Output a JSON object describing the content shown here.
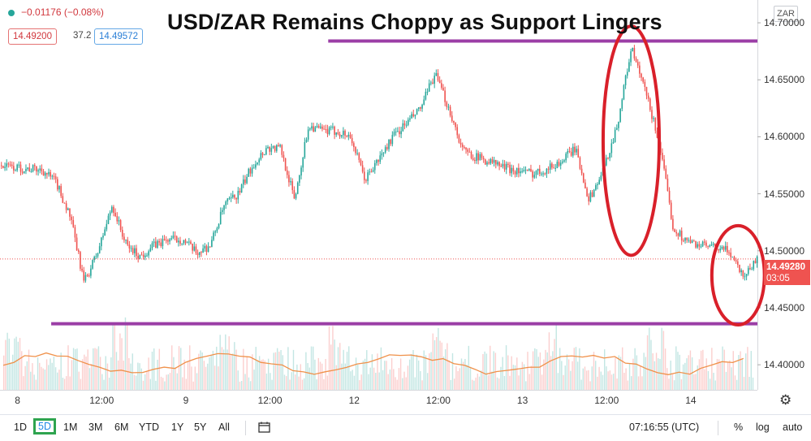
{
  "legend": {
    "change_text": "−0.01176 (−0.08%)",
    "bid": "14.49200",
    "spread": "37.2",
    "ask": "14.49572"
  },
  "title": "USD/ZAR Remains Choppy as Support Lingers",
  "currency_label": "ZAR",
  "price_tag": {
    "price": "14.49280",
    "countdown": "03:05"
  },
  "ranges": [
    "1D",
    "5D",
    "1M",
    "3M",
    "6M",
    "YTD",
    "1Y",
    "5Y",
    "All"
  ],
  "active_range": "5D",
  "clock": "07:16:55 (UTC)",
  "options": {
    "percent": "%",
    "log": "log",
    "auto": "auto"
  },
  "colors": {
    "up": "#26a69a",
    "down": "#ef5350",
    "volume_ma": "#f0914a",
    "support_resistance": "#9b3ea6",
    "annotation_circle": "#d9202a"
  },
  "chart_data": {
    "type": "line",
    "title": "USD/ZAR Remains Choppy as Support Lingers",
    "y_ticks": [
      "14.70000",
      "14.65000",
      "14.60000",
      "14.55000",
      "14.50000",
      "14.45000",
      "14.40000"
    ],
    "x_ticks": [
      "8",
      "12:00",
      "9",
      "12:00",
      "12",
      "12:00",
      "13",
      "12:00",
      "14"
    ],
    "ylim": [
      14.378,
      14.72
    ],
    "resistance": 14.684,
    "support": 14.436,
    "last_price": 14.4928,
    "series": [
      {
        "x": [
          0,
          2,
          4,
          6,
          8,
          10,
          12,
          14,
          16,
          18,
          20,
          22,
          24,
          26,
          28,
          30,
          32,
          34,
          36,
          38,
          40,
          42,
          44,
          46,
          48,
          50,
          52,
          54,
          56,
          58,
          60,
          62,
          64,
          66,
          68,
          70,
          72,
          74,
          76,
          78,
          80,
          82,
          84,
          86,
          88,
          90,
          92,
          94,
          96,
          98,
          100,
          102,
          104,
          106,
          108
        ],
        "values": [
          14.575,
          14.573,
          14.572,
          14.571,
          14.56,
          14.53,
          14.472,
          14.5,
          14.54,
          14.505,
          14.495,
          14.505,
          14.51,
          14.51,
          14.498,
          14.505,
          14.54,
          14.55,
          14.575,
          14.59,
          14.59,
          14.545,
          14.61,
          14.605,
          14.605,
          14.6,
          14.562,
          14.58,
          14.6,
          14.612,
          14.625,
          14.655,
          14.625,
          14.588,
          14.582,
          14.578,
          14.573,
          14.57,
          14.568,
          14.572,
          14.578,
          14.59,
          14.545,
          14.57,
          14.61,
          14.678,
          14.64,
          14.595,
          14.52,
          14.508,
          14.505,
          14.502,
          14.5,
          14.478,
          14.493
        ]
      }
    ],
    "circles": [
      {
        "x_from": 86,
        "x_to": 94,
        "y_from": 14.496,
        "y_to": 14.697
      },
      {
        "x_from": 101.5,
        "x_to": 109,
        "y_from": 14.435,
        "y_to": 14.522
      }
    ]
  }
}
